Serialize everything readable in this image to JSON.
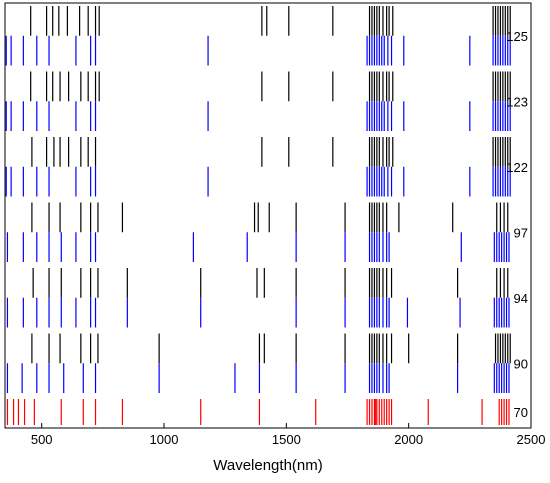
{
  "chart_data": {
    "type": "event",
    "xlabel": "Wavelength(nm)",
    "xlim": [
      350,
      2500
    ],
    "xticks": [
      500,
      1000,
      1500,
      2000,
      2500
    ],
    "rows": [
      {
        "label": "125",
        "series": [
          {
            "color": "#000000",
            "values": [
              455,
              520,
              545,
              570,
              605,
              655,
              690,
              720,
              735,
              1400,
              1420,
              1510,
              1690,
              1840,
              1850,
              1860,
              1870,
              1880,
              1895,
              1910,
              1920,
              1935,
              2345,
              2355,
              2365,
              2375,
              2385,
              2395,
              2405,
              2415
            ]
          },
          {
            "color": "#0000ff",
            "values": [
              355,
              375,
              425,
              480,
              530,
              640,
              700,
              720,
              1180,
              1830,
              1840,
              1850,
              1860,
              1870,
              1880,
              1890,
              1900,
              1915,
              1930,
              1980,
              2250,
              2345,
              2355,
              2365,
              2375,
              2385,
              2395,
              2405,
              2415
            ]
          }
        ]
      },
      {
        "label": "123",
        "series": [
          {
            "color": "#000000",
            "values": [
              455,
              520,
              545,
              575,
              610,
              660,
              690,
              720,
              735,
              1400,
              1510,
              1690,
              1840,
              1850,
              1860,
              1870,
              1880,
              1895,
              1910,
              1920,
              1935,
              2345,
              2355,
              2365,
              2375,
              2385,
              2395,
              2405,
              2415
            ]
          },
          {
            "color": "#0000ff",
            "values": [
              355,
              375,
              425,
              480,
              530,
              640,
              700,
              720,
              1180,
              1830,
              1840,
              1850,
              1860,
              1870,
              1880,
              1890,
              1900,
              1915,
              1930,
              1980,
              2250,
              2345,
              2355,
              2365,
              2375,
              2385,
              2395,
              2405,
              2415
            ]
          }
        ]
      },
      {
        "label": "122",
        "series": [
          {
            "color": "#000000",
            "values": [
              460,
              520,
              550,
              575,
              610,
              660,
              690,
              720,
              1400,
              1510,
              1690,
              1840,
              1850,
              1860,
              1870,
              1880,
              1895,
              1910,
              1920,
              1935,
              2345,
              2355,
              2365,
              2375,
              2385,
              2395,
              2405,
              2415
            ]
          },
          {
            "color": "#0000ff",
            "values": [
              355,
              375,
              425,
              480,
              530,
              640,
              700,
              720,
              1180,
              1830,
              1840,
              1850,
              1860,
              1870,
              1880,
              1890,
              1900,
              1915,
              1930,
              1980,
              2250,
              2345,
              2355,
              2365,
              2375,
              2385,
              2395,
              2405,
              2415
            ]
          }
        ]
      },
      {
        "label": "97",
        "series": [
          {
            "color": "#000000",
            "values": [
              460,
              530,
              575,
              660,
              700,
              730,
              830,
              1370,
              1385,
              1430,
              1540,
              1740,
              1840,
              1850,
              1860,
              1870,
              1880,
              1895,
              1910,
              1960,
              2180,
              2360,
              2375,
              2390,
              2405
            ]
          },
          {
            "color": "#0000ff",
            "values": [
              360,
              425,
              480,
              530,
              580,
              640,
              700,
              720,
              1120,
              1340,
              1540,
              1740,
              1840,
              1850,
              1860,
              1870,
              1880,
              1895,
              1910,
              1920,
              2215,
              2350,
              2360,
              2370,
              2380,
              2390,
              2400,
              2410
            ]
          }
        ]
      },
      {
        "label": "94",
        "series": [
          {
            "color": "#000000",
            "values": [
              465,
              530,
              580,
              660,
              700,
              730,
              850,
              1150,
              1380,
              1410,
              1540,
              1740,
              1840,
              1850,
              1860,
              1870,
              1880,
              1895,
              1910,
              1930,
              2200,
              2360,
              2375,
              2390,
              2405
            ]
          },
          {
            "color": "#0000ff",
            "values": [
              360,
              425,
              480,
              530,
              580,
              640,
              700,
              720,
              850,
              1150,
              1540,
              1740,
              1840,
              1850,
              1860,
              1870,
              1880,
              1895,
              1910,
              1920,
              1995,
              2210,
              2350,
              2360,
              2370,
              2380,
              2390,
              2400,
              2410
            ]
          }
        ]
      },
      {
        "label": "90",
        "series": [
          {
            "color": "#000000",
            "values": [
              460,
              530,
              575,
              660,
              700,
              730,
              980,
              1390,
              1410,
              1540,
              1740,
              1840,
              1850,
              1860,
              1870,
              1880,
              1895,
              1910,
              1930,
              2000,
              2200,
              2355,
              2365,
              2375,
              2385,
              2395,
              2405,
              2415
            ]
          },
          {
            "color": "#0000ff",
            "values": [
              360,
              420,
              480,
              530,
              590,
              670,
              720,
              980,
              1290,
              1390,
              1540,
              1740,
              1840,
              1850,
              1860,
              1870,
              1880,
              1895,
              1910,
              1920,
              2200,
              2350,
              2360,
              2370,
              2380,
              2390,
              2400,
              2410
            ]
          }
        ]
      },
      {
        "label": "70",
        "series": [
          {
            "color": "#ff0000",
            "values": [
              360,
              385,
              405,
              430,
              470,
              580,
              670,
              720,
              830,
              1150,
              1390,
              1620,
              1830,
              1840,
              1850,
              1860,
              1865,
              1870,
              1880,
              1890,
              1900,
              1910,
              1920,
              1930,
              2080,
              2300,
              2370,
              2380,
              2390,
              2400,
              2410
            ]
          }
        ]
      }
    ]
  }
}
